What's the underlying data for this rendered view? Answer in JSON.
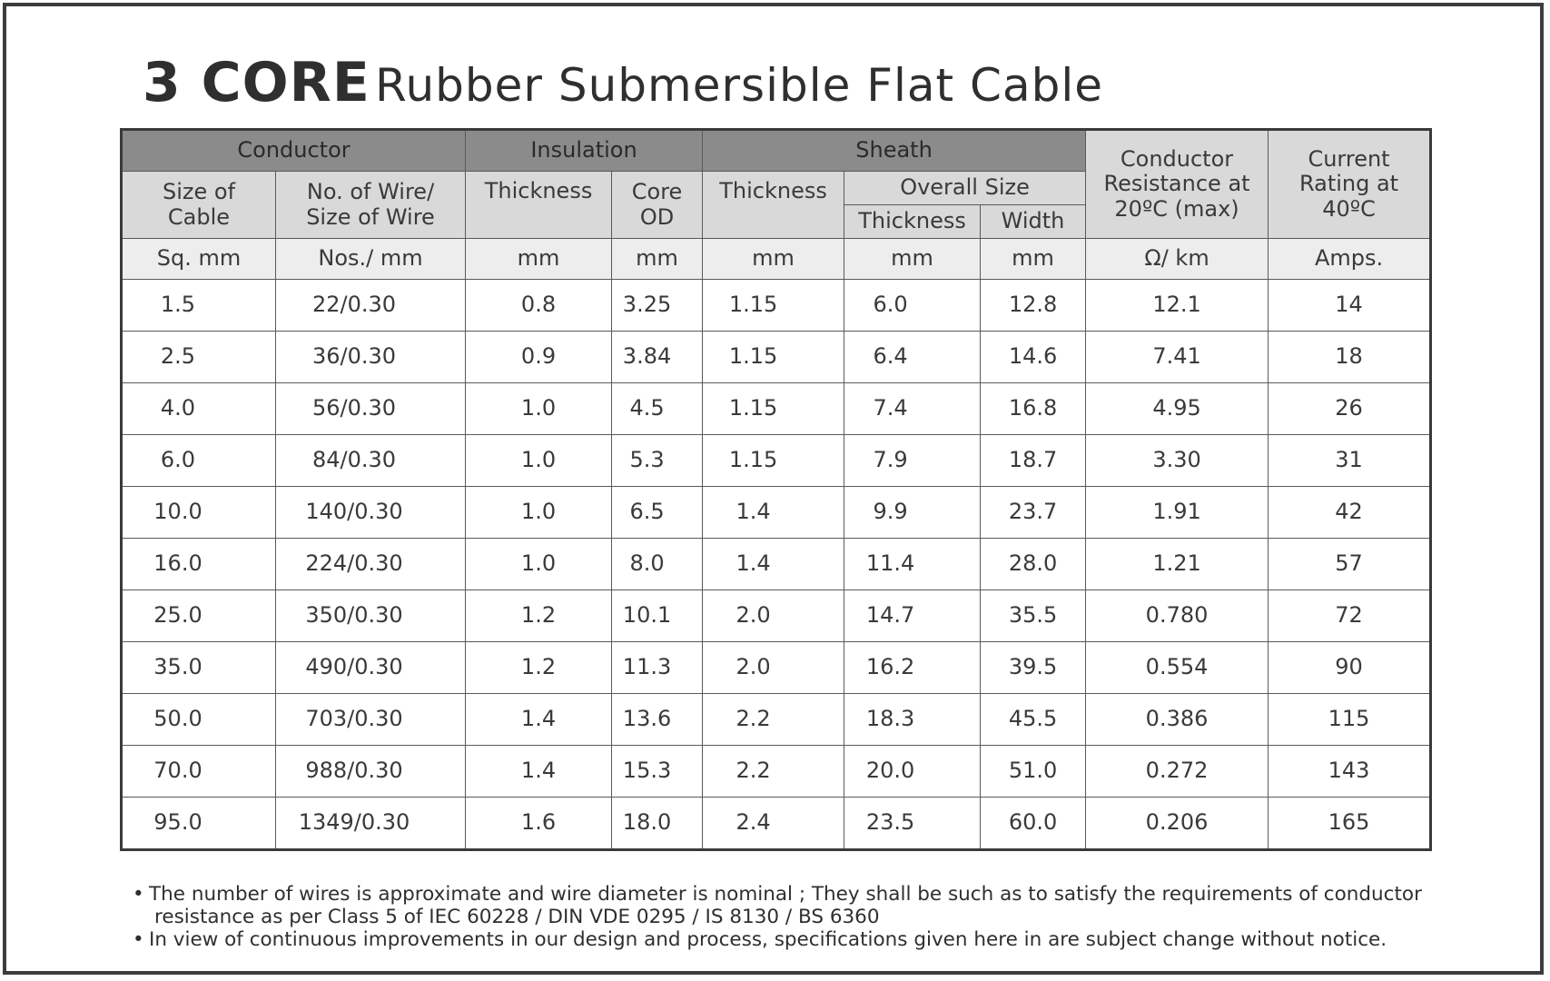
{
  "title": {
    "bold": "3 CORE",
    "rest": "Rubber Submersible Flat Cable"
  },
  "groups": {
    "conductor": "Conductor",
    "insulation": "Insulation",
    "sheath": "Sheath",
    "resistance": "Conductor Resistance at 20ºC (max)",
    "current": "Current Rating at 40ºC"
  },
  "headers": {
    "size_of_cable": "Size of Cable",
    "no_of_wire": "No. of Wire/ Size of Wire",
    "ins_thickness": "Thickness",
    "core_od": "Core OD",
    "sheath_thickness": "Thickness",
    "overall_size": "Overall Size",
    "overall_thickness": "Thickness",
    "overall_width": "Width"
  },
  "units": [
    "Sq. mm",
    "Nos./ mm",
    "mm",
    "mm",
    "mm",
    "mm",
    "mm",
    "Ω/ km",
    "Amps."
  ],
  "rows": [
    [
      "1.5",
      "22/0.30",
      "0.8",
      "3.25",
      "1.15",
      "6.0",
      "12.8",
      "12.1",
      "14"
    ],
    [
      "2.5",
      "36/0.30",
      "0.9",
      "3.84",
      "1.15",
      "6.4",
      "14.6",
      "7.41",
      "18"
    ],
    [
      "4.0",
      "56/0.30",
      "1.0",
      "4.5",
      "1.15",
      "7.4",
      "16.8",
      "4.95",
      "26"
    ],
    [
      "6.0",
      "84/0.30",
      "1.0",
      "5.3",
      "1.15",
      "7.9",
      "18.7",
      "3.30",
      "31"
    ],
    [
      "10.0",
      "140/0.30",
      "1.0",
      "6.5",
      "1.4",
      "9.9",
      "23.7",
      "1.91",
      "42"
    ],
    [
      "16.0",
      "224/0.30",
      "1.0",
      "8.0",
      "1.4",
      "11.4",
      "28.0",
      "1.21",
      "57"
    ],
    [
      "25.0",
      "350/0.30",
      "1.2",
      "10.1",
      "2.0",
      "14.7",
      "35.5",
      "0.780",
      "72"
    ],
    [
      "35.0",
      "490/0.30",
      "1.2",
      "11.3",
      "2.0",
      "16.2",
      "39.5",
      "0.554",
      "90"
    ],
    [
      "50.0",
      "703/0.30",
      "1.4",
      "13.6",
      "2.2",
      "18.3",
      "45.5",
      "0.386",
      "115"
    ],
    [
      "70.0",
      "988/0.30",
      "1.4",
      "15.3",
      "2.2",
      "20.0",
      "51.0",
      "0.272",
      "143"
    ],
    [
      "95.0",
      "1349/0.30",
      "1.6",
      "18.0",
      "2.4",
      "23.5",
      "60.0",
      "0.206",
      "165"
    ]
  ],
  "notes": [
    {
      "line1": "The number of wires is approximate and wire diameter is nominal ; They shall be such as to satisfy the requirements of conductor",
      "line2": "resistance as per Class 5 of IEC 60228 / DIN VDE 0295 / IS 8130 / BS 6360"
    },
    {
      "line1": "In view of continuous improvements in our design and process, specifications given here in are subject change without notice.",
      "line2": ""
    }
  ],
  "colors": {
    "group_header": "#8b8b8b",
    "sub_header": "#d9d9d9",
    "unit_row": "#ededed",
    "border": "#3a3a3a"
  }
}
